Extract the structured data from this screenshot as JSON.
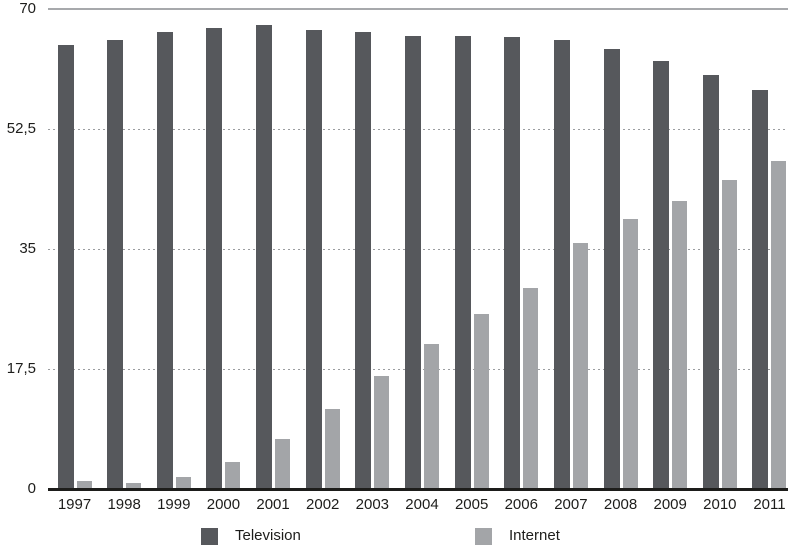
{
  "chart_data": {
    "type": "bar",
    "title": "",
    "xlabel": "",
    "ylabel": "",
    "categories": [
      "1997",
      "1998",
      "1999",
      "2000",
      "2001",
      "2002",
      "2003",
      "2004",
      "2005",
      "2006",
      "2007",
      "2008",
      "2009",
      "2010",
      "2011"
    ],
    "series": [
      {
        "name": "Television",
        "color": "#56585c",
        "values": [
          64.7,
          65.5,
          66.6,
          67.2,
          67.6,
          66.9,
          66.6,
          66.1,
          66.0,
          65.9,
          65.5,
          64.1,
          62.4,
          60.4,
          58.2
        ]
      },
      {
        "name": "Internet",
        "color": "#a3a5a8",
        "values": [
          1.2,
          0.9,
          1.7,
          4.0,
          7.3,
          11.7,
          16.5,
          21.2,
          25.5,
          29.3,
          35.9,
          39.4,
          42.0,
          45.0,
          47.8
        ]
      }
    ],
    "y_axis": {
      "min": 0,
      "max": 70,
      "ticks": [
        {
          "label": "70",
          "value": 70
        },
        {
          "label": "52,5",
          "value": 52.5
        },
        {
          "label": "35",
          "value": 35
        },
        {
          "label": "17,5",
          "value": 17.5
        },
        {
          "label": "0",
          "value": 0
        }
      ],
      "decimal_separator": ","
    },
    "grid": "horizontal-dotted",
    "legend_position": "bottom",
    "colors": {
      "baseline": "#1d1d1b",
      "top_rule": "#a7a9ac",
      "gridline": "#9b9da0",
      "text": "#1d1d1b",
      "background": "#ffffff"
    }
  }
}
